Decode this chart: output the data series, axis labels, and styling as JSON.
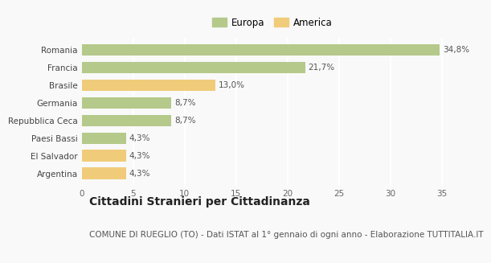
{
  "categories": [
    "Argentina",
    "El Salvador",
    "Paesi Bassi",
    "Repubblica Ceca",
    "Germania",
    "Brasile",
    "Francia",
    "Romania"
  ],
  "values": [
    4.3,
    4.3,
    4.3,
    8.7,
    8.7,
    13.0,
    21.7,
    34.8
  ],
  "colors": [
    "#f0cc7a",
    "#f0cc7a",
    "#b5c98a",
    "#b5c98a",
    "#b5c98a",
    "#f0cc7a",
    "#b5c98a",
    "#b5c98a"
  ],
  "labels": [
    "4,3%",
    "4,3%",
    "4,3%",
    "8,7%",
    "8,7%",
    "13,0%",
    "21,7%",
    "34,8%"
  ],
  "legend": [
    {
      "label": "Europa",
      "color": "#b5c98a"
    },
    {
      "label": "America",
      "color": "#f0cc7a"
    }
  ],
  "xlim": [
    0,
    37
  ],
  "xticks": [
    0,
    5,
    10,
    15,
    20,
    25,
    30,
    35
  ],
  "title": "Cittadini Stranieri per Cittadinanza",
  "subtitle": "COMUNE DI RUEGLIO (TO) - Dati ISTAT al 1° gennaio di ogni anno - Elaborazione TUTTITALIA.IT",
  "bg_color": "#f9f9f9",
  "grid_color": "#ffffff",
  "title_fontsize": 10,
  "subtitle_fontsize": 7.5,
  "label_fontsize": 7.5,
  "tick_fontsize": 7.5,
  "legend_fontsize": 8.5
}
